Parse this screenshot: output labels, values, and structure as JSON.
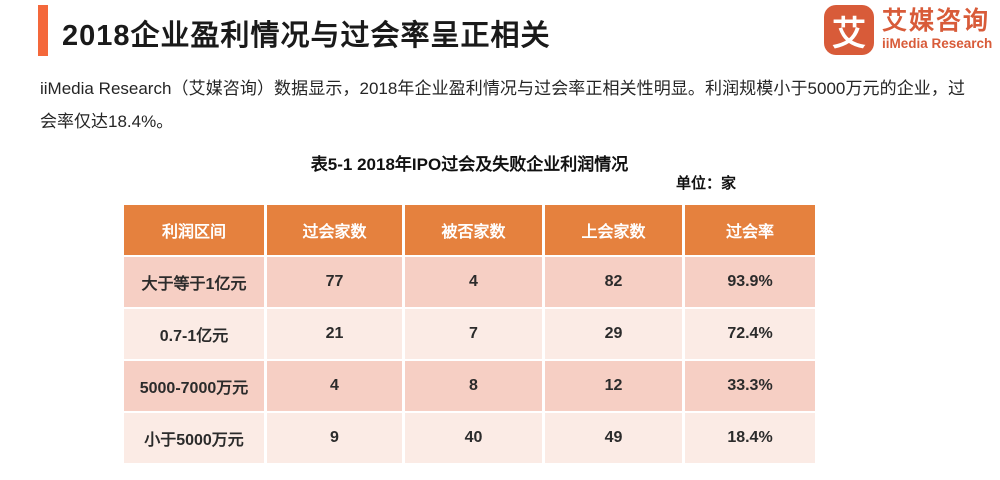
{
  "header": {
    "title": "2018企业盈利情况与过会率呈正相关",
    "logo": {
      "glyph": "艾",
      "name_cn": "艾媒咨询",
      "name_en": "iiMedia Research"
    }
  },
  "intro": "iiMedia Research（艾媒咨询）数据显示，2018年企业盈利情况与过会率正相关性明显。利润规模小于5000万元的企业，过会率仅达18.4%。",
  "chart_data": {
    "type": "table",
    "title": "表5-1 2018年IPO过会及失败企业利润情况",
    "unit_label": "单位：家",
    "columns": [
      "利润区间",
      "过会家数",
      "被否家数",
      "上会家数",
      "过会率"
    ],
    "rows": [
      [
        "大于等于1亿元",
        "77",
        "4",
        "82",
        "93.9%"
      ],
      [
        "0.7-1亿元",
        "21",
        "7",
        "29",
        "72.4%"
      ],
      [
        "5000-7000万元",
        "4",
        "8",
        "12",
        "33.3%"
      ],
      [
        "小于5000万元",
        "9",
        "40",
        "49",
        "18.4%"
      ]
    ]
  },
  "colors": {
    "accent": "#F4683B",
    "logo": "#D85B39",
    "table_header_bg": "#E5813E",
    "row_dark": "#F6CFC4",
    "row_light": "#FBEBE5"
  }
}
